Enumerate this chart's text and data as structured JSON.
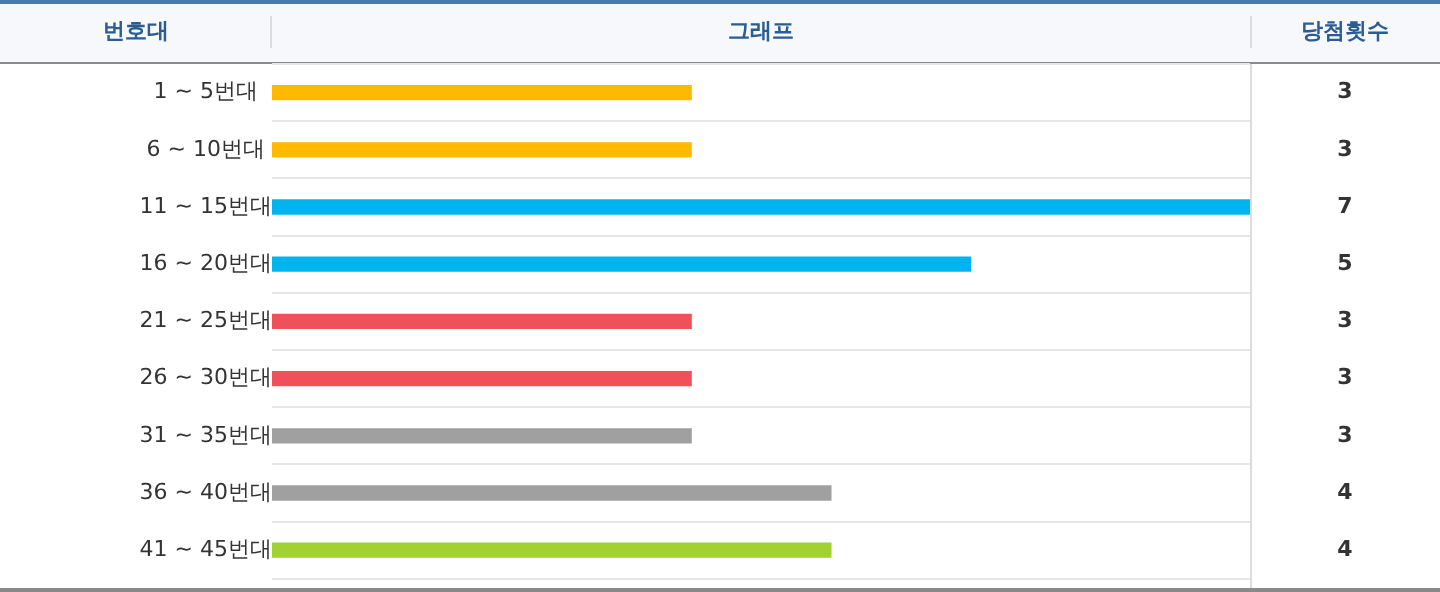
{
  "chart_data": {
    "type": "bar",
    "orientation": "horizontal",
    "title": "그래프",
    "ylabel": "번호대",
    "annotations": [
      "당첨횟수"
    ],
    "categories": [
      "1 ~ 5번대",
      "6 ~ 10번대",
      "11 ~ 15번대",
      "16 ~ 20번대",
      "21 ~ 25번대",
      "26 ~ 30번대",
      "31 ~ 35번대",
      "36 ~ 40번대",
      "41 ~ 45번대"
    ],
    "values": [
      3,
      3,
      7,
      5,
      3,
      3,
      3,
      4,
      4
    ],
    "colors": [
      "#ffb900",
      "#ffb900",
      "#00b4f0",
      "#00b4f0",
      "#f0505a",
      "#f0505a",
      "#a0a0a0",
      "#a0a0a0",
      "#a0d232"
    ],
    "xlim": [
      0,
      7
    ],
    "data_labels": true,
    "grid": "y",
    "legend": false
  }
}
